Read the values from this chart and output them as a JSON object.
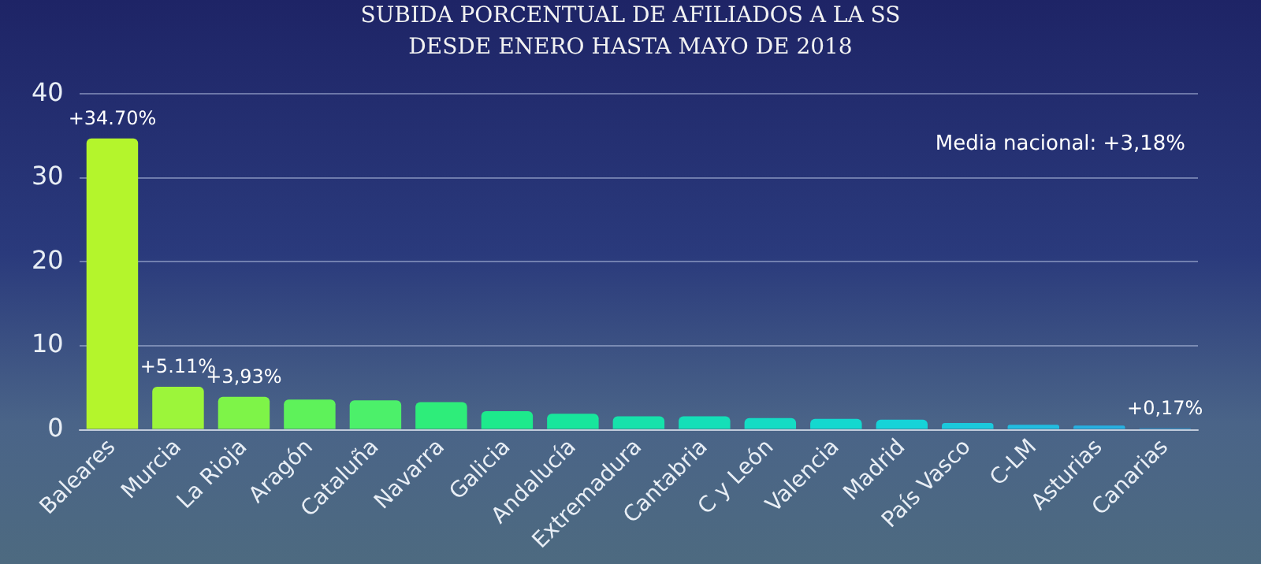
{
  "chart_data": {
    "type": "bar",
    "title": "SUBIDA PORCENTUAL DE AFILIADOS A LA SS\nDESDE ENERO HASTA MAYO DE 2018",
    "categories": [
      "Baleares",
      "Murcia",
      "La Rioja",
      "Aragón",
      "Cataluña",
      "Navarra",
      "Galicia",
      "Andalucía",
      "Extremadura",
      "Cantabria",
      "C y León",
      "Valencia",
      "Madrid",
      "País Vasco",
      "C-LM",
      "Asturias",
      "Canarias"
    ],
    "values": [
      34.7,
      5.11,
      3.93,
      3.6,
      3.5,
      3.3,
      2.2,
      1.9,
      1.6,
      1.6,
      1.4,
      1.3,
      1.2,
      0.8,
      0.6,
      0.5,
      0.17
    ],
    "value_labels": [
      "+34.70%",
      "+5.11%",
      "+3,93%",
      null,
      null,
      null,
      null,
      null,
      null,
      null,
      null,
      null,
      null,
      null,
      null,
      null,
      "+0,17%"
    ],
    "colors": [
      "#b4f52c",
      "#9cf53a",
      "#7ef448",
      "#5ef25a",
      "#4cf06a",
      "#2eed7a",
      "#1dea8c",
      "#18e69c",
      "#16e2ab",
      "#14dfb8",
      "#14dcc4",
      "#14d8cf",
      "#16d3d8",
      "#1bc9dc",
      "#22bde0",
      "#28b0e0",
      "#2aa3de"
    ],
    "ylim": [
      0,
      40
    ],
    "yticks": [
      0,
      10,
      20,
      30,
      40
    ],
    "grid": "y",
    "annotations": [
      "Media nacional: +3,18%"
    ]
  }
}
